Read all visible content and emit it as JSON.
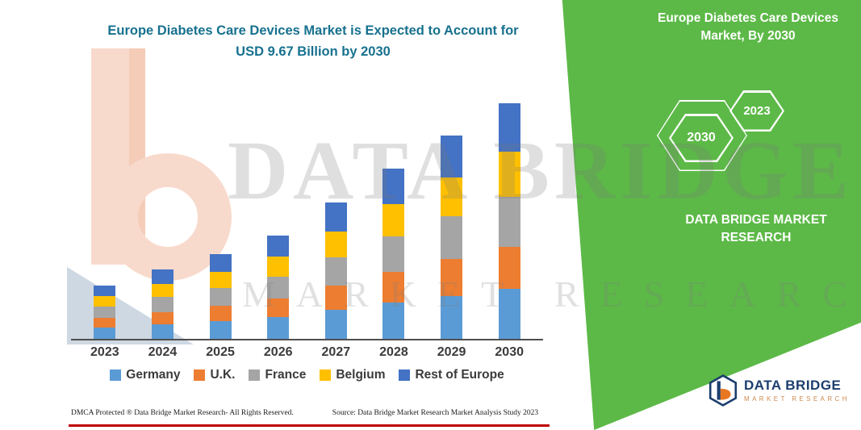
{
  "page": {
    "title_line1": "Europe Diabetes Care Devices Market is Expected to Account for",
    "title_line2": "USD 9.67 Billion by 2030"
  },
  "right_panel": {
    "heading": "Europe Diabetes Care Devices Market, By 2030",
    "hexagon_back_label": "2030",
    "hexagon_front_label": "2023",
    "brand_text": "DATA BRIDGE MARKET RESEARCH",
    "green_color": "#5cb947"
  },
  "watermark": {
    "line1": "DATA BRIDGE",
    "line2": "MARKET RESEARCH"
  },
  "footer": {
    "dmca": "DMCA Protected ® Data Bridge Market Research-  All Rights Reserved.",
    "source": "Source: Data Bridge Market Research  Market Analysis Study 2023",
    "rule_color": "#c00000"
  },
  "corner_logo": {
    "name": "DATA BRIDGE",
    "subtitle": "MARKET RESEARCH"
  },
  "chart_data": {
    "type": "bar",
    "stacked": true,
    "title": "Europe Diabetes Care Devices Market is Expected to Account for USD 9.67 Billion by 2030",
    "unit": "USD Billion",
    "categories": [
      "2023",
      "2024",
      "2025",
      "2026",
      "2027",
      "2028",
      "2029",
      "2030"
    ],
    "series": [
      {
        "name": "Germany",
        "color": "#5B9BD5",
        "values": [
          0.46,
          0.6,
          0.74,
          0.9,
          1.18,
          1.48,
          1.77,
          2.06
        ]
      },
      {
        "name": "U.K.",
        "color": "#ED7D31",
        "values": [
          0.4,
          0.51,
          0.63,
          0.76,
          1.0,
          1.26,
          1.5,
          1.72
        ]
      },
      {
        "name": "France",
        "color": "#A5A5A5",
        "values": [
          0.46,
          0.6,
          0.73,
          0.89,
          1.17,
          1.47,
          1.75,
          2.04
        ]
      },
      {
        "name": "Belgium",
        "color": "#FFC000",
        "values": [
          0.42,
          0.55,
          0.67,
          0.81,
          1.07,
          1.33,
          1.59,
          1.87
        ]
      },
      {
        "name": "Rest of Europe",
        "color": "#4472C4",
        "values": [
          0.46,
          0.59,
          0.73,
          0.89,
          1.18,
          1.46,
          1.74,
          1.98
        ]
      }
    ],
    "totals": [
      2.2,
      2.85,
      3.5,
      4.25,
      5.6,
      7.0,
      8.35,
      9.67
    ],
    "xlabel": "",
    "ylabel": "",
    "ylim": [
      0,
      10
    ],
    "grid": false,
    "y_axis_visible": false,
    "legend_position": "bottom"
  }
}
